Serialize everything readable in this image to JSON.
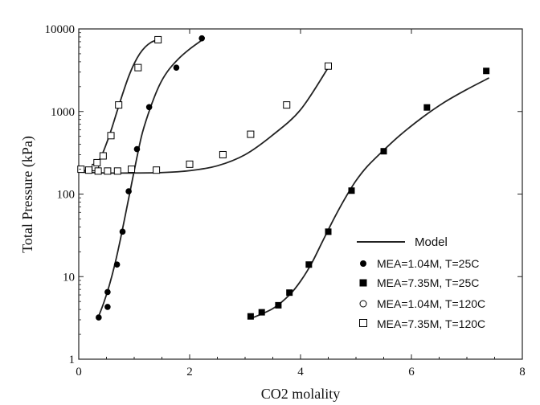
{
  "chart_data": {
    "type": "scatter",
    "xlabel": "CO2 molality",
    "ylabel": "Total Pressure (kPa)",
    "xlim": [
      0,
      8
    ],
    "ylim": [
      1,
      10000
    ],
    "yscale": "log",
    "x_ticks": [
      0,
      2,
      4,
      6,
      8
    ],
    "x_tick_labels": [
      "0",
      "2",
      "4",
      "6",
      "8"
    ],
    "y_ticks": [
      1,
      10,
      100,
      1000,
      10000
    ],
    "y_tick_labels": [
      "1",
      "10",
      "100",
      "1000",
      "10000"
    ],
    "grid": false,
    "legend_position": "bottom-right",
    "series": [
      {
        "name": "MEA=1.04M, T=25C",
        "marker": "filled-circle",
        "color": "#000000",
        "points": [
          [
            0.36,
            3.2
          ],
          [
            0.52,
            6.5
          ],
          [
            0.52,
            4.3
          ],
          [
            0.69,
            14
          ],
          [
            0.79,
            35
          ],
          [
            0.9,
            108
          ],
          [
            1.05,
            350
          ],
          [
            1.27,
            1130
          ],
          [
            1.76,
            3400
          ],
          [
            2.22,
            7700
          ]
        ]
      },
      {
        "name": "MEA=7.35M, T=25C",
        "marker": "filled-square",
        "color": "#000000",
        "points": [
          [
            3.1,
            3.3
          ],
          [
            3.3,
            3.7
          ],
          [
            3.6,
            4.5
          ],
          [
            3.8,
            6.4
          ],
          [
            4.15,
            14
          ],
          [
            4.5,
            35
          ],
          [
            4.92,
            110
          ],
          [
            5.5,
            330
          ],
          [
            6.28,
            1120
          ],
          [
            7.35,
            3100
          ]
        ]
      },
      {
        "name": "MEA=1.04M, T=120C",
        "marker": "open-circle",
        "color": "#000000",
        "points": []
      },
      {
        "name": "MEA=7.35M, T=120C",
        "marker": "open-square",
        "color": "#000000",
        "points": [
          [
            0.04,
            200
          ],
          [
            0.18,
            195
          ],
          [
            0.3,
            210
          ],
          [
            0.33,
            240
          ],
          [
            0.35,
            190
          ],
          [
            0.44,
            290
          ],
          [
            0.52,
            190
          ],
          [
            0.58,
            510
          ],
          [
            0.7,
            190
          ],
          [
            0.72,
            1200
          ],
          [
            0.95,
            200
          ],
          [
            1.07,
            3400
          ],
          [
            1.43,
            7400
          ],
          [
            1.4,
            195
          ],
          [
            2.0,
            230
          ],
          [
            2.6,
            300
          ],
          [
            3.1,
            530
          ],
          [
            3.75,
            1200
          ],
          [
            4.5,
            3550
          ]
        ]
      }
    ],
    "model_curves": [
      {
        "name": "Model",
        "points": [
          [
            0.06,
            190
          ],
          [
            0.2,
            200
          ],
          [
            0.3,
            225
          ],
          [
            0.4,
            280
          ],
          [
            0.5,
            410
          ],
          [
            0.6,
            640
          ],
          [
            0.7,
            1050
          ],
          [
            0.8,
            1700
          ],
          [
            0.9,
            2650
          ],
          [
            1.0,
            3800
          ],
          [
            1.1,
            5000
          ],
          [
            1.2,
            6050
          ],
          [
            1.3,
            6850
          ],
          [
            1.4,
            7300
          ]
        ]
      },
      {
        "name": "Model",
        "points": [
          [
            0.35,
            3.2
          ],
          [
            0.45,
            4.8
          ],
          [
            0.55,
            7.8
          ],
          [
            0.65,
            14
          ],
          [
            0.75,
            28
          ],
          [
            0.85,
            60
          ],
          [
            0.95,
            130
          ],
          [
            1.05,
            280
          ],
          [
            1.15,
            560
          ],
          [
            1.3,
            1150
          ],
          [
            1.45,
            2050
          ],
          [
            1.6,
            3050
          ],
          [
            1.8,
            4350
          ],
          [
            2.0,
            5700
          ],
          [
            2.22,
            7300
          ]
        ]
      },
      {
        "name": "Model",
        "points": [
          [
            0.0,
            185
          ],
          [
            0.5,
            180
          ],
          [
            1.0,
            180
          ],
          [
            1.5,
            182
          ],
          [
            2.0,
            192
          ],
          [
            2.5,
            220
          ],
          [
            3.0,
            300
          ],
          [
            3.5,
            520
          ],
          [
            4.0,
            1050
          ],
          [
            4.5,
            3400
          ]
        ]
      },
      {
        "name": "Model",
        "points": [
          [
            3.1,
            3.1
          ],
          [
            3.5,
            4.1
          ],
          [
            3.8,
            6.0
          ],
          [
            4.0,
            8.8
          ],
          [
            4.2,
            14.5
          ],
          [
            4.4,
            27
          ],
          [
            4.6,
            50
          ],
          [
            4.8,
            88
          ],
          [
            5.0,
            145
          ],
          [
            5.2,
            215
          ],
          [
            5.5,
            340
          ],
          [
            5.8,
            520
          ],
          [
            6.2,
            850
          ],
          [
            6.6,
            1300
          ],
          [
            7.0,
            1850
          ],
          [
            7.4,
            2550
          ]
        ]
      }
    ],
    "legend": {
      "model_label": "Model",
      "entries": [
        "MEA=1.04M, T=25C",
        "MEA=7.35M, T=25C",
        "MEA=1.04M, T=120C",
        "MEA=7.35M, T=120C"
      ]
    }
  }
}
